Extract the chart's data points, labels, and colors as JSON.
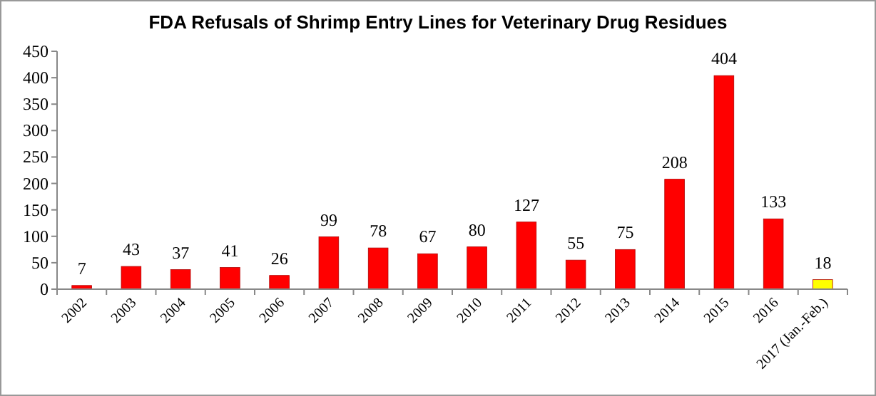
{
  "chart_data": {
    "type": "bar",
    "title": "FDA Refusals of Shrimp Entry Lines for Veterinary Drug Residues",
    "categories": [
      "2002",
      "2003",
      "2004",
      "2005",
      "2006",
      "2007",
      "2008",
      "2009",
      "2010",
      "2011",
      "2012",
      "2013",
      "2014",
      "2015",
      "2016",
      "2017 (Jan.-Feb.)"
    ],
    "values": [
      7,
      43,
      37,
      41,
      26,
      99,
      78,
      67,
      80,
      127,
      55,
      75,
      208,
      404,
      133,
      18
    ],
    "colors": [
      "#ff0000",
      "#ff0000",
      "#ff0000",
      "#ff0000",
      "#ff0000",
      "#ff0000",
      "#ff0000",
      "#ff0000",
      "#ff0000",
      "#ff0000",
      "#ff0000",
      "#ff0000",
      "#ff0000",
      "#ff0000",
      "#ff0000",
      "#ffff00"
    ],
    "ylim": [
      0,
      450
    ],
    "yticks": [
      0,
      50,
      100,
      150,
      200,
      250,
      300,
      350,
      400,
      450
    ],
    "data_labels": true,
    "grid": false
  }
}
